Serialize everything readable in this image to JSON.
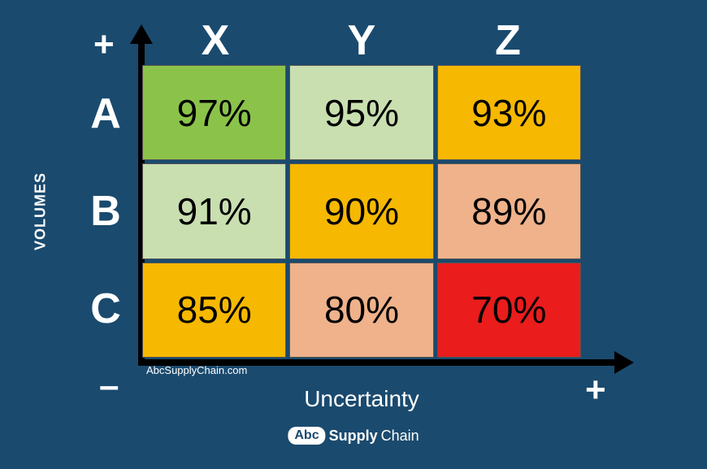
{
  "type": "heatmap-matrix",
  "background_color": "#1a4a6e",
  "columns": [
    "X",
    "Y",
    "Z"
  ],
  "rows": [
    "A",
    "B",
    "C"
  ],
  "cells": [
    [
      {
        "value": "97%",
        "bg": "#8bc34a"
      },
      {
        "value": "95%",
        "bg": "#c9dfb0"
      },
      {
        "value": "93%",
        "bg": "#f6b800"
      }
    ],
    [
      {
        "value": "91%",
        "bg": "#c9dfb0"
      },
      {
        "value": "90%",
        "bg": "#f6b800"
      },
      {
        "value": "89%",
        "bg": "#efb28b"
      }
    ],
    [
      {
        "value": "85%",
        "bg": "#f6b800"
      },
      {
        "value": "80%",
        "bg": "#efb28b"
      },
      {
        "value": "70%",
        "bg": "#ea1c1c"
      }
    ]
  ],
  "y_axis_label": "VOLUMES",
  "x_axis_label": "Uncertainty",
  "plus_top": "+",
  "minus_bottom": "–",
  "plus_right": "+",
  "source_text": "AbcSupplyChain.com",
  "logo": {
    "badge": "Abc",
    "bold": "Supply",
    "light": "Chain"
  },
  "header_fontsize": 52,
  "cell_fontsize": 46,
  "header_color": "#ffffff",
  "cell_text_color": "#000000",
  "axis_color": "#000000",
  "cell_gap": 4,
  "cell_border_color": "#555555"
}
